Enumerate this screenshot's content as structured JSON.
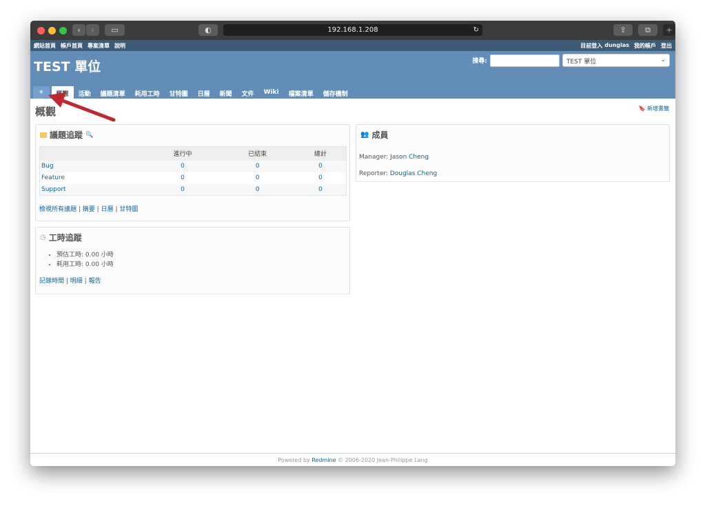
{
  "browser": {
    "url": "192.168.1.208"
  },
  "topmenu": {
    "left": [
      "網站首頁",
      "帳戶首頁",
      "專案清單",
      "說明"
    ],
    "logged_in_label": "目前登入",
    "user": "dunglas",
    "my_account": "我的帳戶",
    "logout": "登出"
  },
  "header": {
    "title": "TEST 單位",
    "search_label": "搜尋:",
    "search_value": "",
    "project_select": "TEST 單位"
  },
  "tabs": [
    "+",
    "概觀",
    "活動",
    "議題清單",
    "耗用工時",
    "甘特圖",
    "日曆",
    "新聞",
    "文件",
    "Wiki",
    "檔案清單",
    "儲存機制"
  ],
  "page": {
    "title": "概觀",
    "new_bookmark": "新增書籤"
  },
  "issues": {
    "title": "議題追蹤",
    "columns": [
      "",
      "進行中",
      "已結束",
      "總計"
    ],
    "rows": [
      {
        "tracker": "Bug",
        "open": "0",
        "closed": "0",
        "total": "0"
      },
      {
        "tracker": "Feature",
        "open": "0",
        "closed": "0",
        "total": "0"
      },
      {
        "tracker": "Support",
        "open": "0",
        "closed": "0",
        "total": "0"
      }
    ],
    "links": [
      "檢視所有議題",
      "摘要",
      "日曆",
      "甘特圖"
    ]
  },
  "time": {
    "title": "工時追蹤",
    "items": [
      "預估工時: 0.00 小時",
      "耗用工時: 0.00 小時"
    ],
    "links": [
      "記錄時間",
      "明細",
      "報告"
    ]
  },
  "members": {
    "title": "成員",
    "rows": [
      {
        "role": "Manager:",
        "name": "Jason Cheng"
      },
      {
        "role": "Reporter:",
        "name": "Douglas Cheng"
      }
    ]
  },
  "footer": {
    "prefix": "Powered by",
    "link": "Redmine",
    "suffix": "© 2006-2020 Jean-Philippe Lang"
  },
  "colors": {
    "header": "#628db6",
    "topmenu": "#3e5b76",
    "link": "#116699",
    "arrow": "#c0282e"
  }
}
